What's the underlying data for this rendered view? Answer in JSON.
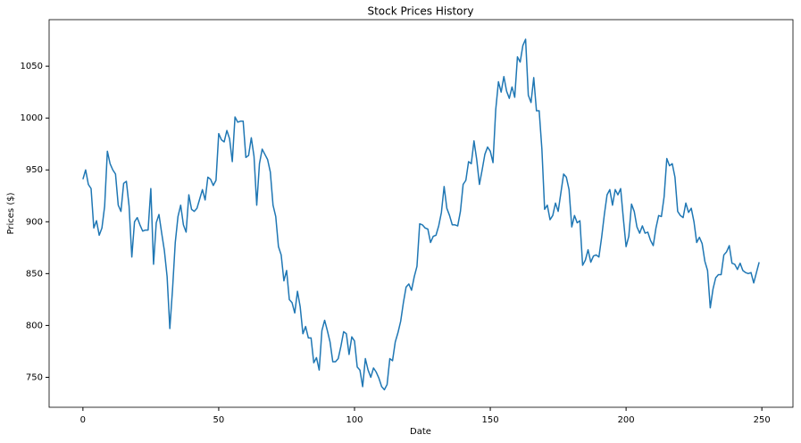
{
  "chart_data": {
    "type": "line",
    "title": "Stock Prices History",
    "x_label": "Date",
    "y_label": "Prices ($)",
    "color": "#1f77b4",
    "x": [
      0,
      1,
      2,
      3,
      4,
      5,
      6,
      7,
      8,
      9,
      10,
      11,
      12,
      13,
      14,
      15,
      16,
      17,
      18,
      19,
      20,
      21,
      22,
      23,
      24,
      25,
      26,
      27,
      28,
      29,
      30,
      31,
      32,
      33,
      34,
      35,
      36,
      37,
      38,
      39,
      40,
      41,
      42,
      43,
      44,
      45,
      46,
      47,
      48,
      49,
      50,
      51,
      52,
      53,
      54,
      55,
      56,
      57,
      58,
      59,
      60,
      61,
      62,
      63,
      64,
      65,
      66,
      67,
      68,
      69,
      70,
      71,
      72,
      73,
      74,
      75,
      76,
      77,
      78,
      79,
      80,
      81,
      82,
      83,
      84,
      85,
      86,
      87,
      88,
      89,
      90,
      91,
      92,
      93,
      94,
      95,
      96,
      97,
      98,
      99,
      100,
      101,
      102,
      103,
      104,
      105,
      106,
      107,
      108,
      109,
      110,
      111,
      112,
      113,
      114,
      115,
      116,
      117,
      118,
      119,
      120,
      121,
      122,
      123,
      124,
      125,
      126,
      127,
      128,
      129,
      130,
      131,
      132,
      133,
      134,
      135,
      136,
      137,
      138,
      139,
      140,
      141,
      142,
      143,
      144,
      145,
      146,
      147,
      148,
      149,
      150,
      151,
      152,
      153,
      154,
      155,
      156,
      157,
      158,
      159,
      160,
      161,
      162,
      163,
      164,
      165,
      166,
      167,
      168,
      169,
      170,
      171,
      172,
      173,
      174,
      175,
      176,
      177,
      178,
      179,
      180,
      181,
      182,
      183,
      184,
      185,
      186,
      187,
      188,
      189,
      190,
      191,
      192,
      193,
      194,
      195,
      196,
      197,
      198,
      199,
      200,
      201,
      202,
      203,
      204,
      205,
      206,
      207,
      208,
      209,
      210,
      211,
      212,
      213,
      214,
      215,
      216,
      217,
      218,
      219,
      220,
      221,
      222,
      223,
      224,
      225,
      226,
      227,
      228,
      229,
      230,
      231,
      232,
      233,
      234,
      235,
      236,
      237,
      238,
      239,
      240,
      241,
      242,
      243,
      244,
      245,
      246,
      247,
      248,
      249
    ],
    "values": [
      941,
      950,
      936,
      932,
      894,
      901,
      887,
      894,
      915,
      968,
      956,
      950,
      946,
      916,
      910,
      937,
      939,
      915,
      866,
      900,
      904,
      897,
      891,
      892,
      892,
      932,
      859,
      899,
      907,
      889,
      872,
      847,
      797,
      835,
      880,
      905,
      916,
      897,
      890,
      926,
      912,
      910,
      913,
      922,
      931,
      921,
      943,
      941,
      935,
      940,
      985,
      979,
      977,
      988,
      980,
      958,
      1001,
      996,
      997,
      997,
      962,
      964,
      981,
      963,
      916,
      956,
      970,
      965,
      960,
      948,
      916,
      905,
      876,
      868,
      843,
      853,
      825,
      822,
      812,
      833,
      818,
      792,
      799,
      788,
      788,
      764,
      769,
      757,
      795,
      805,
      795,
      784,
      765,
      765,
      768,
      780,
      794,
      792,
      772,
      789,
      785,
      760,
      757,
      741,
      768,
      757,
      750,
      759,
      755,
      749,
      741,
      738,
      743,
      768,
      766,
      784,
      793,
      804,
      822,
      837,
      840,
      834,
      847,
      857,
      898,
      897,
      894,
      893,
      880,
      886,
      887,
      896,
      909,
      934,
      913,
      906,
      897,
      897,
      896,
      910,
      936,
      940,
      958,
      956,
      978,
      960,
      936,
      950,
      965,
      972,
      968,
      957,
      1008,
      1035,
      1025,
      1040,
      1026,
      1019,
      1030,
      1020,
      1059,
      1054,
      1070,
      1076,
      1022,
      1015,
      1039,
      1007,
      1007,
      970,
      912,
      916,
      902,
      906,
      918,
      910,
      928,
      946,
      943,
      931,
      895,
      906,
      899,
      901,
      858,
      863,
      873,
      861,
      867,
      868,
      866,
      885,
      907,
      926,
      931,
      916,
      931,
      926,
      932,
      903,
      876,
      886,
      917,
      910,
      895,
      889,
      896,
      889,
      890,
      882,
      877,
      894,
      906,
      905,
      924,
      961,
      954,
      956,
      943,
      910,
      906,
      904,
      918,
      909,
      913,
      900,
      880,
      885,
      879,
      862,
      853,
      817,
      835,
      846,
      849,
      849,
      868,
      871,
      877,
      860,
      859,
      854,
      860,
      853,
      851,
      850,
      851,
      841,
      851,
      861
    ],
    "xlim": [
      -12.45,
      261.45
    ],
    "xticks": [
      0,
      50,
      100,
      150,
      200,
      250
    ],
    "ylim": [
      721.1,
      1094.9
    ],
    "yticks": [
      750,
      800,
      850,
      900,
      950,
      1000,
      1050
    ],
    "grid": false
  }
}
